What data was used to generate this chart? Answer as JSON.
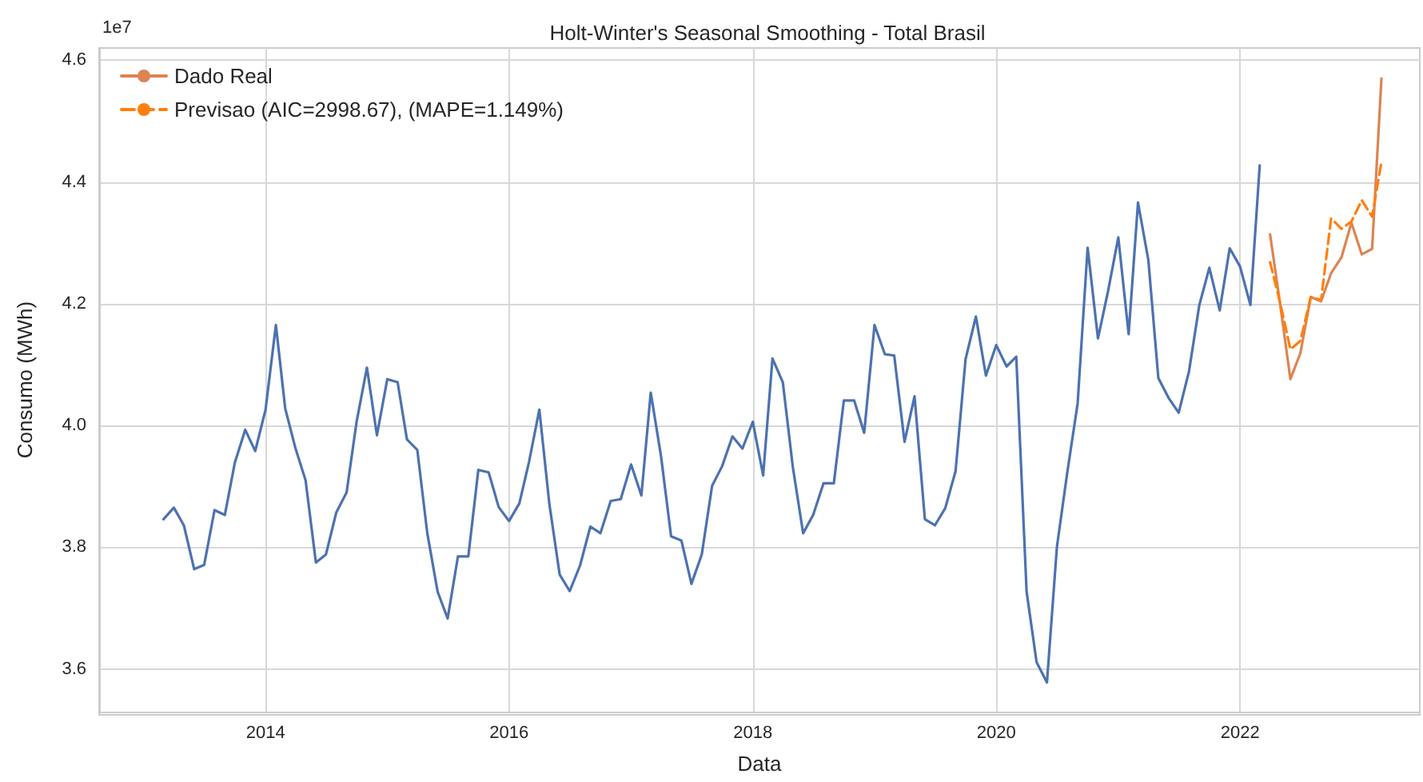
{
  "chart_data": {
    "type": "line",
    "title": "Holt-Winter's Seasonal Smoothing - Total Brasil",
    "xlabel": "Data",
    "ylabel": "Consumo (MWh)",
    "annotations": [
      "1e7"
    ],
    "xlim": [
      "2012-08-20",
      "2023-06-24"
    ],
    "xticks": [
      {
        "value": "2014-01-01",
        "label": "2014"
      },
      {
        "value": "2016-01-01",
        "label": "2016"
      },
      {
        "value": "2018-01-01",
        "label": "2018"
      },
      {
        "value": "2020-01-01",
        "label": "2020"
      },
      {
        "value": "2022-01-01",
        "label": "2022"
      }
    ],
    "ylim": [
      3.53,
      4.62
    ],
    "yticks": [
      3.6,
      3.8,
      {
        "value": 4.0,
        "label": "4.0"
      },
      4.2,
      4.4,
      4.6
    ],
    "grid": true,
    "legend": "top left",
    "marker": "none",
    "series": [
      {
        "color": "#4c72b0",
        "line_style": "solid",
        "x": [
          "2013-03",
          "2013-04",
          "2013-05",
          "2013-06",
          "2013-07",
          "2013-08",
          "2013-09",
          "2013-10",
          "2013-11",
          "2013-12",
          "2014-01",
          "2014-02",
          "2014-03",
          "2014-04",
          "2014-05",
          "2014-06",
          "2014-07",
          "2014-08",
          "2014-09",
          "2014-10",
          "2014-11",
          "2014-12",
          "2015-01",
          "2015-02",
          "2015-03",
          "2015-04",
          "2015-05",
          "2015-06",
          "2015-07",
          "2015-08",
          "2015-09",
          "2015-10",
          "2015-11",
          "2015-12",
          "2016-01",
          "2016-02",
          "2016-03",
          "2016-04",
          "2016-05",
          "2016-06",
          "2016-07",
          "2016-08",
          "2016-09",
          "2016-10",
          "2016-11",
          "2016-12",
          "2017-01",
          "2017-02",
          "2017-03",
          "2017-04",
          "2017-05",
          "2017-06",
          "2017-07",
          "2017-08",
          "2017-09",
          "2017-10",
          "2017-11",
          "2017-12",
          "2018-01",
          "2018-02",
          "2018-03",
          "2018-04",
          "2018-05",
          "2018-06",
          "2018-07",
          "2018-08",
          "2018-09",
          "2018-10",
          "2018-11",
          "2018-12",
          "2019-01",
          "2019-02",
          "2019-03",
          "2019-04",
          "2019-05",
          "2019-06",
          "2019-07",
          "2019-08",
          "2019-09",
          "2019-10",
          "2019-11",
          "2019-12",
          "2020-01",
          "2020-02",
          "2020-03",
          "2020-04",
          "2020-05",
          "2020-06",
          "2020-07",
          "2020-08",
          "2020-09",
          "2020-10",
          "2020-11",
          "2020-12",
          "2021-01",
          "2021-02",
          "2021-03",
          "2021-04",
          "2021-05",
          "2021-06",
          "2021-07",
          "2021-08",
          "2021-09",
          "2021-10",
          "2021-11",
          "2021-12",
          "2022-01",
          "2022-02",
          "2022-03"
        ],
        "values": [
          3.846,
          3.865,
          3.836,
          3.764,
          3.771,
          3.861,
          3.853,
          3.939,
          3.993,
          3.958,
          4.026,
          4.165,
          4.028,
          3.962,
          3.91,
          3.775,
          3.788,
          3.857,
          3.89,
          4.006,
          4.095,
          3.984,
          4.076,
          4.071,
          3.977,
          3.96,
          3.823,
          3.727,
          3.683,
          3.785,
          3.785,
          3.927,
          3.923,
          3.866,
          3.843,
          3.872,
          3.94,
          4.026,
          3.871,
          3.755,
          3.728,
          3.77,
          3.834,
          3.823,
          3.876,
          3.879,
          3.936,
          3.885,
          4.054,
          3.949,
          3.818,
          3.811,
          3.74,
          3.788,
          3.901,
          3.933,
          3.982,
          3.962,
          4.006,
          3.918,
          4.11,
          4.071,
          3.932,
          3.823,
          3.853,
          3.905,
          3.905,
          4.041,
          4.041,
          3.988,
          4.165,
          4.117,
          4.115,
          3.973,
          4.048,
          3.846,
          3.836,
          3.864,
          3.925,
          4.109,
          4.179,
          4.082,
          4.132,
          4.097,
          4.113,
          3.727,
          3.611,
          3.578,
          3.801,
          3.923,
          4.036,
          4.292,
          4.143,
          4.22,
          4.309,
          4.15,
          4.366,
          4.272,
          4.078,
          4.045,
          4.021,
          4.089,
          4.198,
          4.259,
          4.189,
          4.291,
          4.261,
          4.198,
          4.427
        ]
      },
      {
        "name": "Dado Real",
        "color": "#dd8452",
        "line_style": "solid",
        "x": [
          "2022-04",
          "2022-05",
          "2022-06",
          "2022-07",
          "2022-08",
          "2022-09",
          "2022-10",
          "2022-11",
          "2022-12",
          "2023-01",
          "2023-02",
          "2023-03"
        ],
        "values": [
          4.314,
          4.2,
          4.076,
          4.119,
          4.211,
          4.204,
          4.25,
          4.276,
          4.333,
          4.281,
          4.29,
          4.57
        ]
      },
      {
        "name": "Previsao (AIC=2998.67), (MAPE=1.149%)",
        "color": "#ff7f0e",
        "line_style": "dashed",
        "x": [
          "2022-04",
          "2022-05",
          "2022-06",
          "2022-07",
          "2022-08",
          "2022-09",
          "2022-10",
          "2022-11",
          "2022-12",
          "2023-01",
          "2023-02",
          "2023-03"
        ],
        "values": [
          4.268,
          4.202,
          4.125,
          4.139,
          4.211,
          4.206,
          4.34,
          4.323,
          4.335,
          4.37,
          4.343,
          4.433
        ]
      }
    ]
  }
}
